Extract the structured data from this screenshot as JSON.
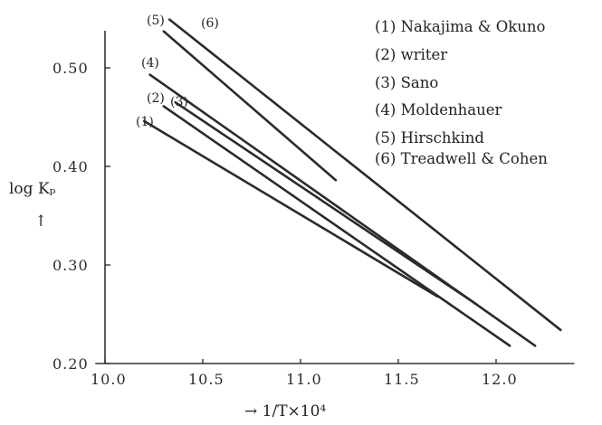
{
  "chart_data": {
    "type": "line",
    "title": "",
    "xlabel": "→  1/T×10⁴",
    "ylabel": "log Kₚ",
    "ylabel_arrow": "↑",
    "xlim": [
      9.95,
      12.4
    ],
    "ylim": [
      0.2,
      0.56
    ],
    "xticks": [
      10.0,
      10.5,
      11.0,
      11.5,
      12.0
    ],
    "xtick_labels": [
      "10.0",
      "10.5",
      "11.0",
      "11.5",
      "12.0"
    ],
    "yticks": [
      0.2,
      0.3,
      0.4,
      0.5
    ],
    "ytick_labels": [
      "0.20",
      "0.30",
      "0.40",
      "0.50"
    ],
    "grid": false,
    "legend": {
      "placement": "top-right",
      "entries": [
        "(1) Nakajima & Okuno",
        "(2) writer",
        "(3) Sano",
        "(4) Moldenhauer",
        "(5) Hirschkind",
        "(6) Treadwell & Cohen"
      ]
    },
    "series": [
      {
        "tag": "(1)",
        "x": [
          10.2,
          11.7
        ],
        "y": [
          0.446,
          0.268
        ]
      },
      {
        "tag": "(2)",
        "x": [
          10.3,
          12.07
        ],
        "y": [
          0.461,
          0.218
        ]
      },
      {
        "tag": "(3)",
        "x": [
          10.36,
          11.9
        ],
        "y": [
          0.465,
          0.26
        ]
      },
      {
        "tag": "(4)",
        "x": [
          10.23,
          12.2
        ],
        "y": [
          0.493,
          0.218
        ]
      },
      {
        "tag": "(5)",
        "x": [
          10.3,
          11.18
        ],
        "y": [
          0.537,
          0.386
        ]
      },
      {
        "tag": "(6)",
        "x": [
          10.33,
          12.33
        ],
        "y": [
          0.549,
          0.234
        ]
      }
    ]
  }
}
